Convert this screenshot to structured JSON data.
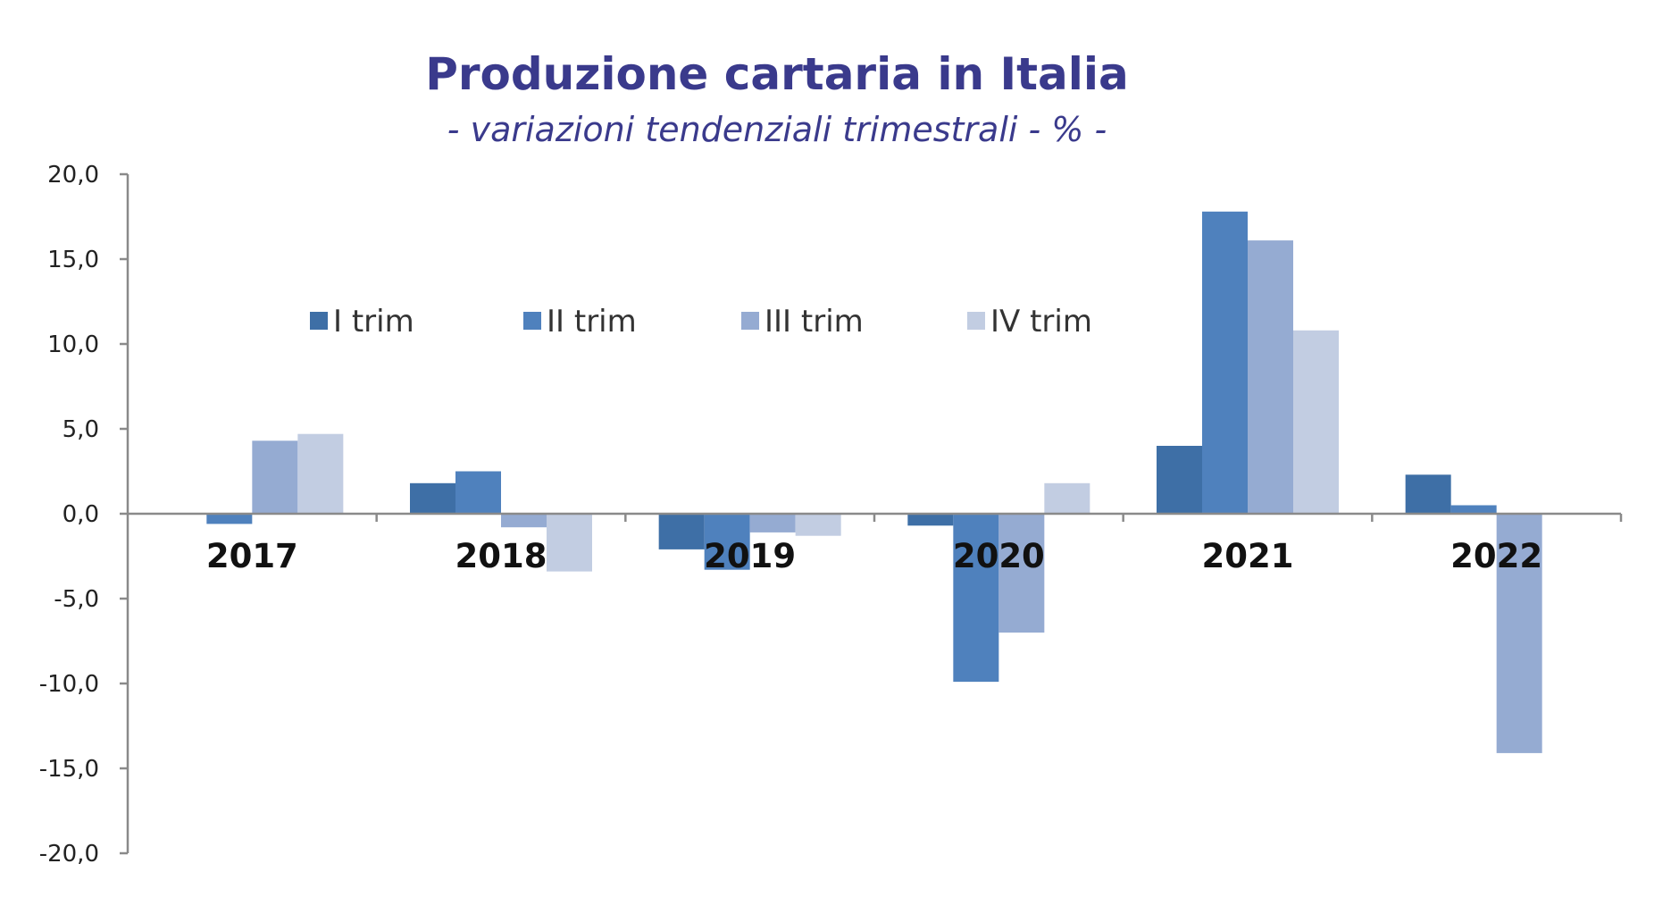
{
  "chart_data": {
    "type": "bar",
    "title": "Produzione cartaria in Italia",
    "subtitle": "- variazioni  tendenziali trimestrali - % -",
    "categories": [
      "2017",
      "2018",
      "2019",
      "2020",
      "2021",
      "2022"
    ],
    "series": [
      {
        "name": "I trim",
        "color": "#3e6fa6",
        "values": [
          0.0,
          1.8,
          -2.1,
          -0.7,
          4.0,
          2.3
        ]
      },
      {
        "name": "II trim",
        "color": "#4f81bd",
        "values": [
          -0.6,
          2.5,
          -3.3,
          -9.9,
          17.8,
          0.5
        ]
      },
      {
        "name": "III trim",
        "color": "#95abd2",
        "values": [
          4.3,
          -0.8,
          -1.1,
          -7.0,
          16.1,
          -14.1
        ]
      },
      {
        "name": "IV trim",
        "color": "#c2cde2",
        "values": [
          4.7,
          -3.4,
          -1.3,
          1.8,
          10.8,
          null
        ]
      }
    ],
    "ylim": [
      -20,
      20
    ],
    "yticks": [
      "20,0",
      "15,0",
      "10,0",
      "5,0",
      "0,0",
      "-5,0",
      "-10,0",
      "-15,0",
      "-20,0"
    ],
    "ytick_values": [
      20,
      15,
      10,
      5,
      0,
      -5,
      -10,
      -15,
      -20
    ],
    "xlabel": "",
    "ylabel": "",
    "legend": "top-left",
    "grid": false,
    "colors": {
      "title": "#3a3a8c",
      "subtitle": "#3a3a8c",
      "axis": "#8a8a8a"
    }
  }
}
